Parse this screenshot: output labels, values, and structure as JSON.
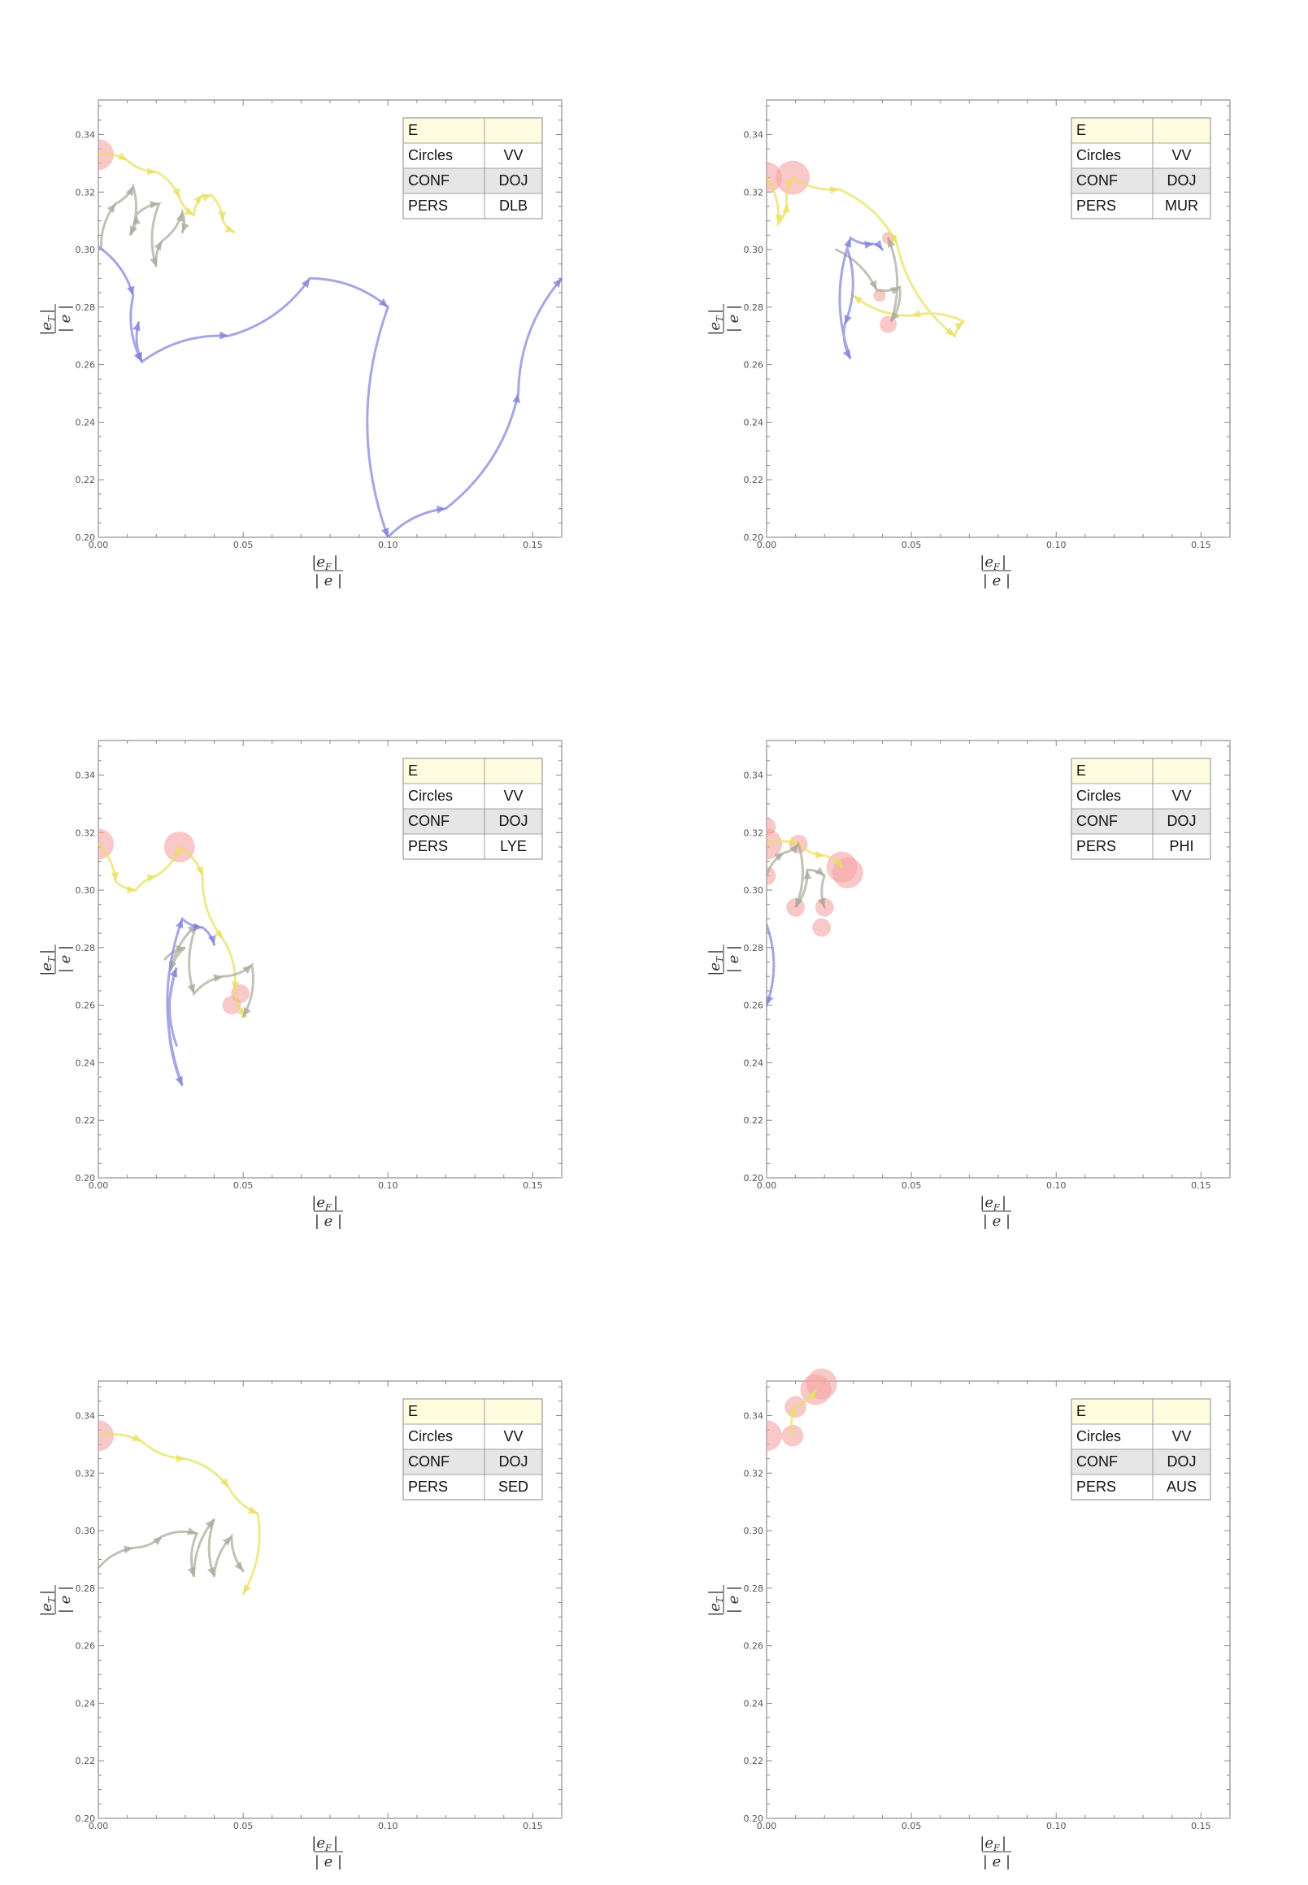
{
  "chart_data": [
    {
      "type": "line",
      "xlabel": "|e_F| / |e|",
      "ylabel": "|e_T| / |e|",
      "xlim": [
        0,
        0.16
      ],
      "ylim": [
        0.2,
        0.352
      ],
      "x_ticks": [
        0.0,
        0.05,
        0.1,
        0.15
      ],
      "x_tick_labels": [
        "0.00",
        "0.05",
        "0.10",
        "0.15"
      ],
      "y_ticks": [
        0.2,
        0.22,
        0.24,
        0.26,
        0.28,
        0.3,
        0.32,
        0.34
      ],
      "y_tick_labels": [
        "0.20",
        "0.22",
        "0.24",
        "0.26",
        "0.28",
        "0.30",
        "0.32",
        "0.34"
      ],
      "grid": false,
      "legend_position": "top-right",
      "legend": {
        "header": "E",
        "rows": [
          [
            "Circles",
            "VV"
          ],
          [
            "CONF",
            "DOJ"
          ],
          [
            "PERS",
            "DLB"
          ]
        ]
      },
      "circles": [
        {
          "x": 0.0,
          "y": 0.333,
          "r": 1.0
        }
      ],
      "series": [
        {
          "color": "#e8e060",
          "points": [
            [
              0.0,
              0.333
            ],
            [
              0.01,
              0.331
            ],
            [
              0.02,
              0.327
            ],
            [
              0.028,
              0.318
            ],
            [
              0.033,
              0.312
            ],
            [
              0.036,
              0.319
            ],
            [
              0.039,
              0.319
            ],
            [
              0.043,
              0.31
            ],
            [
              0.047,
              0.306
            ]
          ]
        },
        {
          "color": "#a8a89a",
          "points": [
            [
              0.001,
              0.301
            ],
            [
              0.006,
              0.316
            ],
            [
              0.012,
              0.322
            ],
            [
              0.011,
              0.305
            ],
            [
              0.013,
              0.312
            ],
            [
              0.021,
              0.316
            ],
            [
              0.02,
              0.294
            ],
            [
              0.022,
              0.303
            ],
            [
              0.029,
              0.313
            ],
            [
              0.029,
              0.306
            ]
          ]
        },
        {
          "color": "#8080d8",
          "points": [
            [
              0.0,
              0.301
            ],
            [
              0.012,
              0.284
            ],
            [
              0.015,
              0.261
            ],
            [
              0.014,
              0.275
            ],
            [
              0.015,
              0.261
            ],
            [
              0.045,
              0.27
            ],
            [
              0.073,
              0.29
            ],
            [
              0.1,
              0.28
            ],
            [
              0.1,
              0.2
            ],
            [
              0.12,
              0.21
            ],
            [
              0.145,
              0.25
            ],
            [
              0.16,
              0.29
            ]
          ]
        }
      ]
    },
    {
      "type": "line",
      "xlabel": "|e_F| / |e|",
      "ylabel": "|e_T| / |e|",
      "xlim": [
        0,
        0.16
      ],
      "ylim": [
        0.2,
        0.352
      ],
      "x_ticks": [
        0.0,
        0.05,
        0.1,
        0.15
      ],
      "x_tick_labels": [
        "0.00",
        "0.05",
        "0.10",
        "0.15"
      ],
      "y_ticks": [
        0.2,
        0.22,
        0.24,
        0.26,
        0.28,
        0.3,
        0.32,
        0.34
      ],
      "y_tick_labels": [
        "0.20",
        "0.22",
        "0.24",
        "0.26",
        "0.28",
        "0.30",
        "0.32",
        "0.34"
      ],
      "grid": false,
      "legend_position": "top-right",
      "legend": {
        "header": "E",
        "rows": [
          [
            "Circles",
            "VV"
          ],
          [
            "CONF",
            "DOJ"
          ],
          [
            "PERS",
            "MUR"
          ]
        ]
      },
      "circles": [
        {
          "x": 0.0,
          "y": 0.325,
          "r": 1.0
        },
        {
          "x": 0.009,
          "y": 0.325,
          "r": 1.1
        },
        {
          "x": 0.042,
          "y": 0.304,
          "r": 0.4
        },
        {
          "x": 0.039,
          "y": 0.284,
          "r": 0.4
        },
        {
          "x": 0.042,
          "y": 0.274,
          "r": 0.55
        }
      ],
      "series": [
        {
          "color": "#e8e060",
          "points": [
            [
              0.0,
              0.325
            ],
            [
              0.004,
              0.309
            ],
            [
              0.007,
              0.316
            ],
            [
              0.009,
              0.325
            ],
            [
              0.025,
              0.321
            ],
            [
              0.045,
              0.302
            ],
            [
              0.065,
              0.27
            ],
            [
              0.068,
              0.275
            ],
            [
              0.05,
              0.277
            ],
            [
              0.03,
              0.284
            ]
          ]
        },
        {
          "color": "#a8a89a",
          "points": [
            [
              0.024,
              0.3
            ],
            [
              0.038,
              0.286
            ],
            [
              0.046,
              0.287
            ],
            [
              0.043,
              0.275
            ],
            [
              0.042,
              0.304
            ]
          ]
        },
        {
          "color": "#8080d8",
          "points": [
            [
              0.028,
              0.3
            ],
            [
              0.027,
              0.274
            ],
            [
              0.029,
              0.262
            ],
            [
              0.029,
              0.304
            ],
            [
              0.037,
              0.302
            ],
            [
              0.04,
              0.3
            ]
          ]
        }
      ]
    },
    {
      "type": "line",
      "xlabel": "|e_F| / |e|",
      "ylabel": "|e_T| / |e|",
      "xlim": [
        0,
        0.16
      ],
      "ylim": [
        0.2,
        0.352
      ],
      "x_ticks": [
        0.0,
        0.05,
        0.1,
        0.15
      ],
      "x_tick_labels": [
        "0.00",
        "0.05",
        "0.10",
        "0.15"
      ],
      "y_ticks": [
        0.2,
        0.22,
        0.24,
        0.26,
        0.28,
        0.3,
        0.32,
        0.34
      ],
      "y_tick_labels": [
        "0.20",
        "0.22",
        "0.24",
        "0.26",
        "0.28",
        "0.30",
        "0.32",
        "0.34"
      ],
      "grid": false,
      "legend_position": "top-right",
      "legend": {
        "header": "E",
        "rows": [
          [
            "Circles",
            "VV"
          ],
          [
            "CONF",
            "DOJ"
          ],
          [
            "PERS",
            "LYE"
          ]
        ]
      },
      "circles": [
        {
          "x": 0.0,
          "y": 0.316,
          "r": 1.0
        },
        {
          "x": 0.028,
          "y": 0.315,
          "r": 1.0
        },
        {
          "x": 0.049,
          "y": 0.264,
          "r": 0.6
        },
        {
          "x": 0.046,
          "y": 0.26,
          "r": 0.6
        }
      ],
      "series": [
        {
          "color": "#e8e060",
          "points": [
            [
              0.0,
              0.316
            ],
            [
              0.006,
              0.303
            ],
            [
              0.013,
              0.3
            ],
            [
              0.02,
              0.305
            ],
            [
              0.028,
              0.315
            ],
            [
              0.036,
              0.305
            ],
            [
              0.043,
              0.283
            ],
            [
              0.047,
              0.265
            ],
            [
              0.051,
              0.256
            ]
          ]
        },
        {
          "color": "#a8a89a",
          "points": [
            [
              0.023,
              0.276
            ],
            [
              0.03,
              0.28
            ],
            [
              0.025,
              0.272
            ],
            [
              0.034,
              0.288
            ],
            [
              0.033,
              0.264
            ],
            [
              0.043,
              0.27
            ],
            [
              0.053,
              0.274
            ],
            [
              0.05,
              0.256
            ]
          ]
        },
        {
          "color": "#8080d8",
          "points": [
            [
              0.027,
              0.246
            ],
            [
              0.027,
              0.273
            ],
            [
              0.029,
              0.232
            ],
            [
              0.029,
              0.29
            ],
            [
              0.036,
              0.287
            ],
            [
              0.04,
              0.281
            ]
          ]
        }
      ]
    },
    {
      "type": "line",
      "xlabel": "|e_F| / |e|",
      "ylabel": "|e_T| / |e|",
      "xlim": [
        0,
        0.16
      ],
      "ylim": [
        0.2,
        0.352
      ],
      "x_ticks": [
        0.0,
        0.05,
        0.1,
        0.15
      ],
      "x_tick_labels": [
        "0.00",
        "0.05",
        "0.10",
        "0.15"
      ],
      "y_ticks": [
        0.2,
        0.22,
        0.24,
        0.26,
        0.28,
        0.3,
        0.32,
        0.34
      ],
      "y_tick_labels": [
        "0.20",
        "0.22",
        "0.24",
        "0.26",
        "0.28",
        "0.30",
        "0.32",
        "0.34"
      ],
      "grid": false,
      "legend_position": "top-right",
      "legend": {
        "header": "E",
        "rows": [
          [
            "Circles",
            "VV"
          ],
          [
            "CONF",
            "DOJ"
          ],
          [
            "PERS",
            "PHI"
          ]
        ]
      },
      "circles": [
        {
          "x": 0.0,
          "y": 0.316,
          "r": 1.0
        },
        {
          "x": 0.0,
          "y": 0.322,
          "r": 0.6
        },
        {
          "x": 0.0,
          "y": 0.305,
          "r": 0.6
        },
        {
          "x": 0.011,
          "y": 0.316,
          "r": 0.6
        },
        {
          "x": 0.01,
          "y": 0.294,
          "r": 0.6
        },
        {
          "x": 0.02,
          "y": 0.294,
          "r": 0.6
        },
        {
          "x": 0.019,
          "y": 0.287,
          "r": 0.6
        },
        {
          "x": 0.026,
          "y": 0.308,
          "r": 1.0
        },
        {
          "x": 0.028,
          "y": 0.306,
          "r": 1.0
        }
      ],
      "series": [
        {
          "color": "#e8e060",
          "points": [
            [
              0.0,
              0.316
            ],
            [
              0.011,
              0.316
            ],
            [
              0.02,
              0.312
            ],
            [
              0.026,
              0.308
            ]
          ]
        },
        {
          "color": "#a8a89a",
          "points": [
            [
              0.0,
              0.305
            ],
            [
              0.006,
              0.313
            ],
            [
              0.011,
              0.316
            ],
            [
              0.01,
              0.294
            ],
            [
              0.014,
              0.307
            ],
            [
              0.02,
              0.305
            ],
            [
              0.02,
              0.294
            ]
          ]
        },
        {
          "color": "#8080d8",
          "points": [
            [
              0.0,
              0.288
            ],
            [
              0.0,
              0.26
            ],
            [
              0.0,
              0.246
            ]
          ]
        }
      ]
    },
    {
      "type": "line",
      "xlabel": "|e_F| / |e|",
      "ylabel": "|e_T| / |e|",
      "xlim": [
        0,
        0.16
      ],
      "ylim": [
        0.2,
        0.352
      ],
      "x_ticks": [
        0.0,
        0.05,
        0.1,
        0.15
      ],
      "x_tick_labels": [
        "0.00",
        "0.05",
        "0.10",
        "0.15"
      ],
      "y_ticks": [
        0.2,
        0.22,
        0.24,
        0.26,
        0.28,
        0.3,
        0.32,
        0.34
      ],
      "y_tick_labels": [
        "0.20",
        "0.22",
        "0.24",
        "0.26",
        "0.28",
        "0.30",
        "0.32",
        "0.34"
      ],
      "grid": false,
      "legend_position": "top-right",
      "legend": {
        "header": "E",
        "rows": [
          [
            "Circles",
            "VV"
          ],
          [
            "CONF",
            "DOJ"
          ],
          [
            "PERS",
            "SED"
          ]
        ]
      },
      "circles": [
        {
          "x": 0.0,
          "y": 0.333,
          "r": 1.0
        }
      ],
      "series": [
        {
          "color": "#e8e060",
          "points": [
            [
              0.0,
              0.333
            ],
            [
              0.015,
              0.331
            ],
            [
              0.03,
              0.325
            ],
            [
              0.045,
              0.315
            ],
            [
              0.055,
              0.306
            ],
            [
              0.05,
              0.278
            ]
          ]
        },
        {
          "color": "#a8a89a",
          "points": [
            [
              0.0,
              0.287
            ],
            [
              0.012,
              0.294
            ],
            [
              0.022,
              0.298
            ],
            [
              0.034,
              0.299
            ],
            [
              0.033,
              0.284
            ],
            [
              0.04,
              0.304
            ],
            [
              0.04,
              0.284
            ],
            [
              0.046,
              0.298
            ],
            [
              0.05,
              0.286
            ]
          ]
        }
      ]
    },
    {
      "type": "line",
      "xlabel": "|e_F| / |e|",
      "ylabel": "|e_T| / |e|",
      "xlim": [
        0,
        0.16
      ],
      "ylim": [
        0.2,
        0.352
      ],
      "x_ticks": [
        0.0,
        0.05,
        0.1,
        0.15
      ],
      "x_tick_labels": [
        "0.00",
        "0.05",
        "0.10",
        "0.15"
      ],
      "y_ticks": [
        0.2,
        0.22,
        0.24,
        0.26,
        0.28,
        0.3,
        0.32,
        0.34
      ],
      "y_tick_labels": [
        "0.20",
        "0.22",
        "0.24",
        "0.26",
        "0.28",
        "0.30",
        "0.32",
        "0.34"
      ],
      "grid": false,
      "legend_position": "top-right",
      "legend": {
        "header": "E",
        "rows": [
          [
            "Circles",
            "VV"
          ],
          [
            "CONF",
            "DOJ"
          ],
          [
            "PERS",
            "AUS"
          ]
        ]
      },
      "circles": [
        {
          "x": 0.0,
          "y": 0.333,
          "r": 1.0
        },
        {
          "x": 0.009,
          "y": 0.333,
          "r": 0.7
        },
        {
          "x": 0.01,
          "y": 0.343,
          "r": 0.7
        },
        {
          "x": 0.017,
          "y": 0.349,
          "r": 1.0
        },
        {
          "x": 0.019,
          "y": 0.351,
          "r": 1.0
        }
      ],
      "series": [
        {
          "color": "#e8e060",
          "points": [
            [
              0.009,
              0.333
            ],
            [
              0.01,
              0.343
            ],
            [
              0.017,
              0.349
            ]
          ]
        }
      ]
    }
  ],
  "colors": {
    "circle_fill": "#f5a3a3",
    "frame": "#777777",
    "legend_header_bg": "#fffde0",
    "legend_stripe_bg": "#e6e6e6",
    "legend_border": "#888888"
  }
}
